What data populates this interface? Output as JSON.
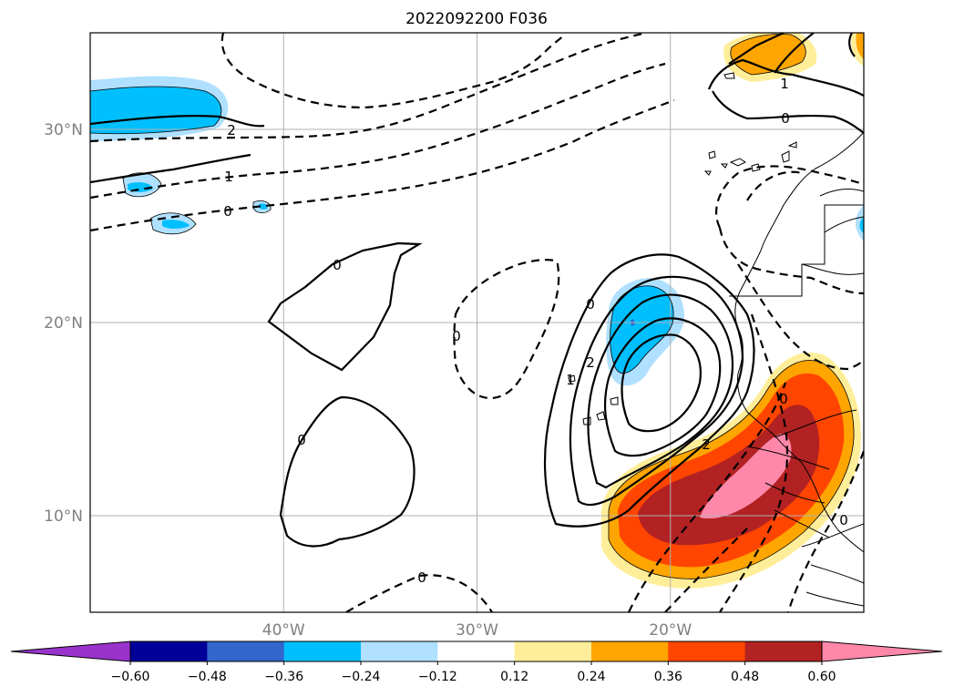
{
  "title": "2022092200 F036",
  "map": {
    "lon_range": [
      -50,
      -10
    ],
    "lat_range": [
      5,
      35
    ],
    "grid": true,
    "lat_ticks": [
      {
        "value": 30,
        "label": "30°N"
      },
      {
        "value": 20,
        "label": "20°N"
      },
      {
        "value": 10,
        "label": "10°N"
      }
    ],
    "lon_ticks": [
      {
        "value": -40,
        "label": "40°W"
      },
      {
        "value": -30,
        "label": "30°W"
      },
      {
        "value": -20,
        "label": "20°W"
      }
    ],
    "contour_labels": [
      "2",
      "1",
      "0",
      "0",
      "0",
      "0",
      "0",
      "0",
      "2",
      "1",
      "0",
      "0",
      "2",
      "1",
      "0"
    ]
  },
  "colorbar": {
    "extend": "both",
    "colors": [
      "#9933cc",
      "#000099",
      "#3366cc",
      "#00bfff",
      "#b0e0ff",
      "#ffffff",
      "#ffee99",
      "#ffa500",
      "#ff4500",
      "#b22222",
      "#ff88aa"
    ],
    "tick_labels": [
      "−0.60",
      "−0.48",
      "−0.36",
      "−0.24",
      "−0.12",
      "0.12",
      "0.24",
      "0.36",
      "0.48",
      "0.60"
    ]
  }
}
